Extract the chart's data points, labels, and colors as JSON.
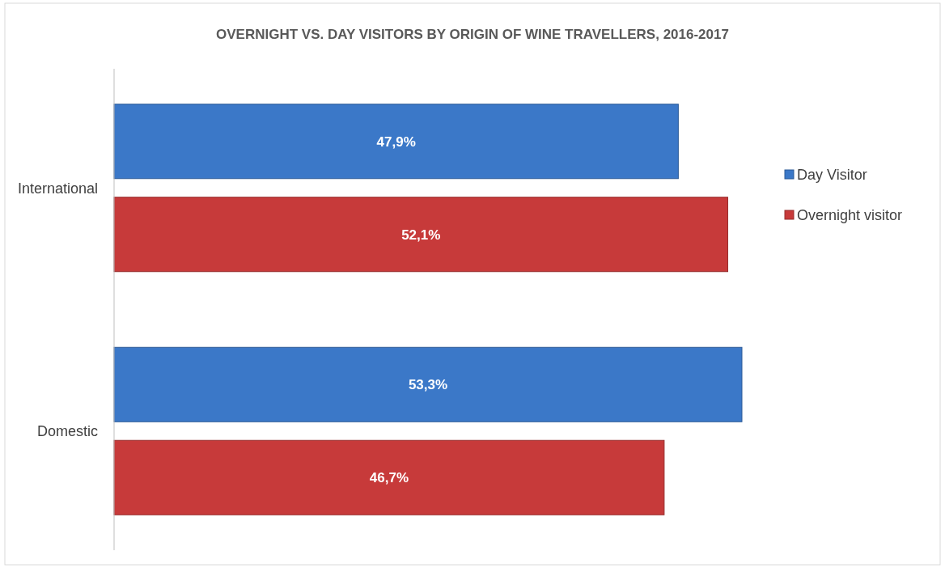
{
  "chart_data": {
    "type": "bar",
    "orientation": "horizontal",
    "title": "OVERNIGHT VS. DAY VISITORS BY ORIGIN OF WINE TRAVELLERS, 2016-2017",
    "categories": [
      "International",
      "Domestic"
    ],
    "series": [
      {
        "name": "Day Visitor",
        "color": "#3b78c8",
        "values": [
          47.9,
          53.3
        ],
        "value_labels": [
          "47,9%",
          "53,3%"
        ]
      },
      {
        "name": "Overnight visitor",
        "color": "#c73a3a",
        "values": [
          52.1,
          46.7
        ],
        "value_labels": [
          "52,1%",
          "46,7%"
        ]
      }
    ],
    "tick_labels": "y",
    "legend": "right"
  }
}
